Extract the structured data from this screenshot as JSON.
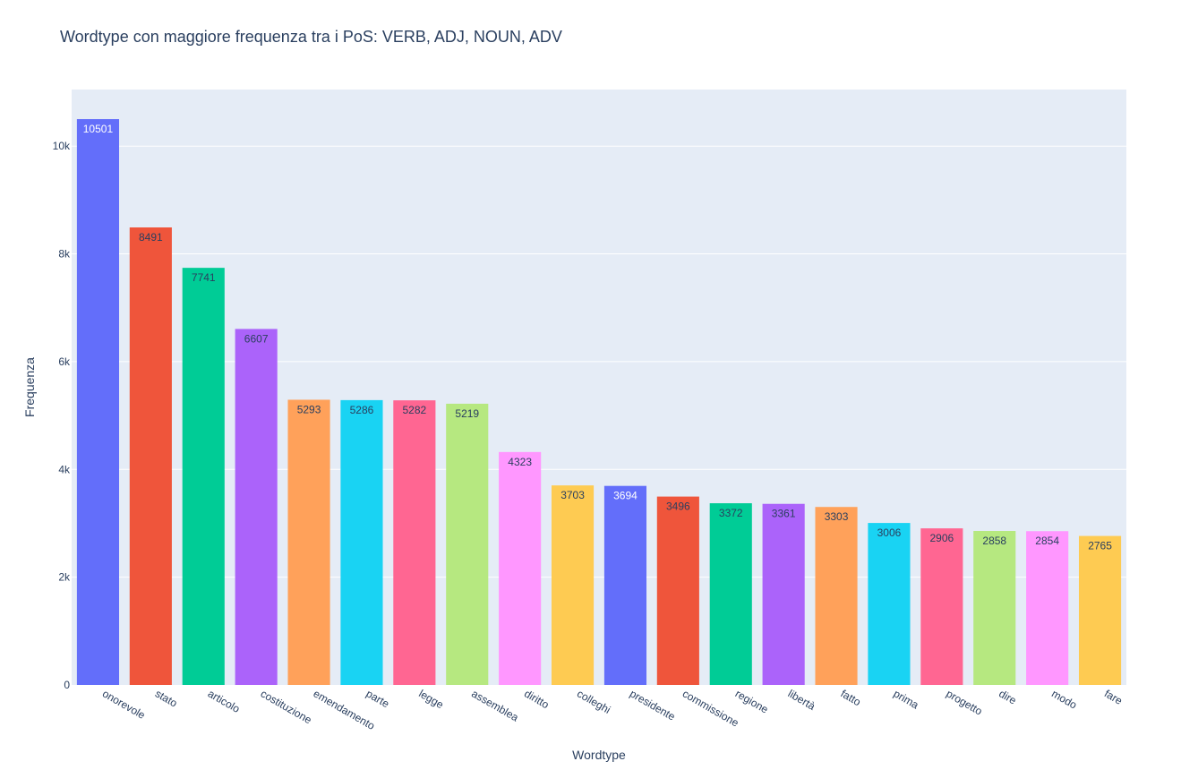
{
  "chart_data": {
    "type": "bar",
    "title": "Wordtype con maggiore frequenza tra i PoS: VERB, ADJ, NOUN, ADV",
    "xlabel": "Wordtype",
    "ylabel": "Frequenza",
    "categories": [
      "onorevole",
      "stato",
      "articolo",
      "costituzione",
      "emendamento",
      "parte",
      "legge",
      "assemblea",
      "diritto",
      "colleghi",
      "presidente",
      "commissione",
      "regione",
      "libertà",
      "fatto",
      "prima",
      "progetto",
      "dire",
      "modo",
      "fare"
    ],
    "values": [
      10501,
      8491,
      7741,
      6607,
      5293,
      5286,
      5282,
      5219,
      4323,
      3703,
      3694,
      3496,
      3372,
      3361,
      3303,
      3006,
      2906,
      2858,
      2854,
      2765
    ],
    "value_labels": [
      "10501",
      "8491",
      "7741",
      "6607",
      "5293",
      "5286",
      "5282",
      "5219",
      "4323",
      "3703",
      "3694",
      "3496",
      "3372",
      "3361",
      "3303",
      "3006",
      "2906",
      "2858",
      "2854",
      "2765"
    ],
    "ylim": [
      0,
      11050
    ],
    "yticks": [
      0,
      2000,
      4000,
      6000,
      8000,
      10000
    ],
    "ytick_labels": [
      "0",
      "2k",
      "4k",
      "6k",
      "8k",
      "10k"
    ],
    "grid": true,
    "legend": "none",
    "plot_background": "#E5ECF6",
    "colors": [
      "#636EFA",
      "#EF553B",
      "#00CC96",
      "#AB63FA",
      "#FFA15A",
      "#19D3F3",
      "#FF6692",
      "#B6E880",
      "#FF97FF",
      "#FECB52",
      "#636EFA",
      "#EF553B",
      "#00CC96",
      "#AB63FA",
      "#FFA15A",
      "#19D3F3",
      "#FF6692",
      "#B6E880",
      "#FF97FF",
      "#FECB52"
    ],
    "label_colors": [
      "#ffffff",
      "#2a3f5f",
      "#2a3f5f",
      "#2a3f5f",
      "#2a3f5f",
      "#2a3f5f",
      "#2a3f5f",
      "#2a3f5f",
      "#2a3f5f",
      "#2a3f5f",
      "#ffffff",
      "#2a3f5f",
      "#2a3f5f",
      "#2a3f5f",
      "#2a3f5f",
      "#2a3f5f",
      "#2a3f5f",
      "#2a3f5f",
      "#2a3f5f",
      "#2a3f5f"
    ]
  }
}
